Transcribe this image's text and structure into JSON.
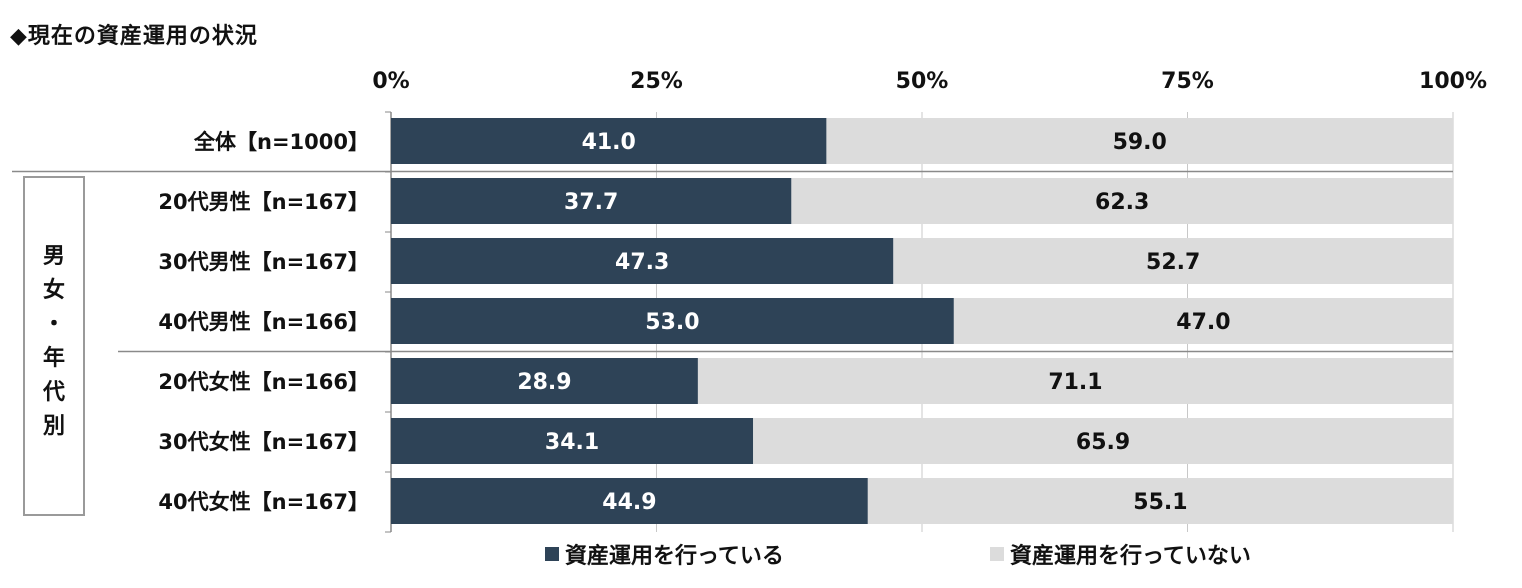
{
  "title": "◆現在の資産運用の状況",
  "colors": {
    "series_doing": "#2e4357",
    "series_not_doing": "#dcdcdc",
    "axis": "#888888"
  },
  "group_label": [
    "男",
    "女",
    "・",
    "年",
    "代",
    "別"
  ],
  "chart_data": {
    "type": "bar",
    "orientation": "horizontal",
    "stacked": true,
    "categories": [
      "全体【n=1000】",
      "20代男性【n=167】",
      "30代男性【n=167】",
      "40代男性【n=166】",
      "20代女性【n=166】",
      "30代女性【n=167】",
      "40代女性【n=167】"
    ],
    "series": [
      {
        "name": "資産運用を行っている",
        "values": [
          41.0,
          37.7,
          47.3,
          53.0,
          28.9,
          34.1,
          44.9
        ]
      },
      {
        "name": "資産運用を行っていない",
        "values": [
          59.0,
          62.3,
          52.7,
          47.0,
          71.1,
          65.9,
          55.1
        ]
      }
    ],
    "data_labels": [
      [
        "41.0",
        "37.7",
        "47.3",
        "53.0",
        "28.9",
        "34.1",
        "44.9"
      ],
      [
        "59.0",
        "62.3",
        "52.7",
        "47.0",
        "71.1",
        "65.9",
        "55.1"
      ]
    ],
    "x_ticks": [
      "0%",
      "25%",
      "50%",
      "75%",
      "100%"
    ],
    "xlim": [
      0,
      100
    ],
    "x_axis_position": "top",
    "grid": true,
    "legend": "bottom"
  }
}
